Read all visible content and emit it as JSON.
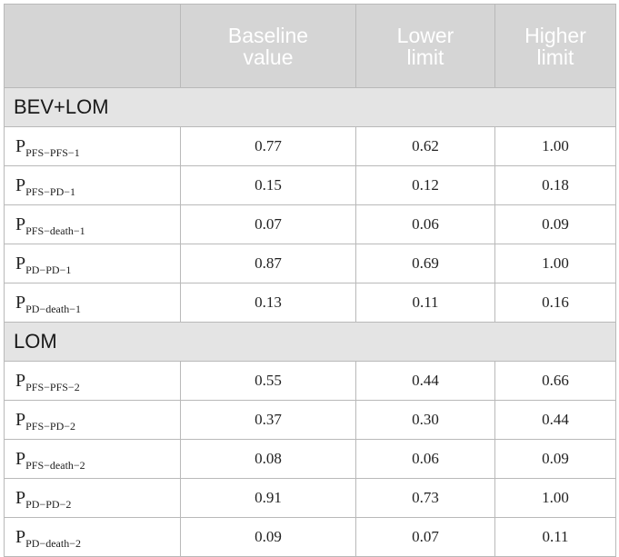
{
  "header": {
    "col0": "",
    "col1": [
      "Baseline",
      "value"
    ],
    "col2": [
      "Lower",
      "limit"
    ],
    "col3": [
      "Higher",
      "limit"
    ]
  },
  "groups": [
    {
      "label": "BEV+LOM",
      "rows": [
        {
          "p": "P",
          "sub": "PFS−PFS−1",
          "baseline": "0.77",
          "lower": "0.62",
          "higher": "1.00"
        },
        {
          "p": "P",
          "sub": "PFS−PD−1",
          "baseline": "0.15",
          "lower": "0.12",
          "higher": "0.18"
        },
        {
          "p": "P",
          "sub": "PFS−death−1",
          "baseline": "0.07",
          "lower": "0.06",
          "higher": "0.09"
        },
        {
          "p": "P",
          "sub": "PD−PD−1",
          "baseline": "0.87",
          "lower": "0.69",
          "higher": "1.00"
        },
        {
          "p": "P",
          "sub": "PD−death−1",
          "baseline": "0.13",
          "lower": "0.11",
          "higher": "0.16"
        }
      ]
    },
    {
      "label": "LOM",
      "rows": [
        {
          "p": "P",
          "sub": "PFS−PFS−2",
          "baseline": "0.55",
          "lower": "0.44",
          "higher": "0.66"
        },
        {
          "p": "P",
          "sub": "PFS−PD−2",
          "baseline": "0.37",
          "lower": "0.30",
          "higher": "0.44"
        },
        {
          "p": "P",
          "sub": "PFS−death−2",
          "baseline": "0.08",
          "lower": "0.06",
          "higher": "0.09"
        },
        {
          "p": "P",
          "sub": "PD−PD−2",
          "baseline": "0.91",
          "lower": "0.73",
          "higher": "1.00"
        },
        {
          "p": "P",
          "sub": "PD−death−2",
          "baseline": "0.09",
          "lower": "0.07",
          "higher": "0.11"
        }
      ]
    }
  ]
}
